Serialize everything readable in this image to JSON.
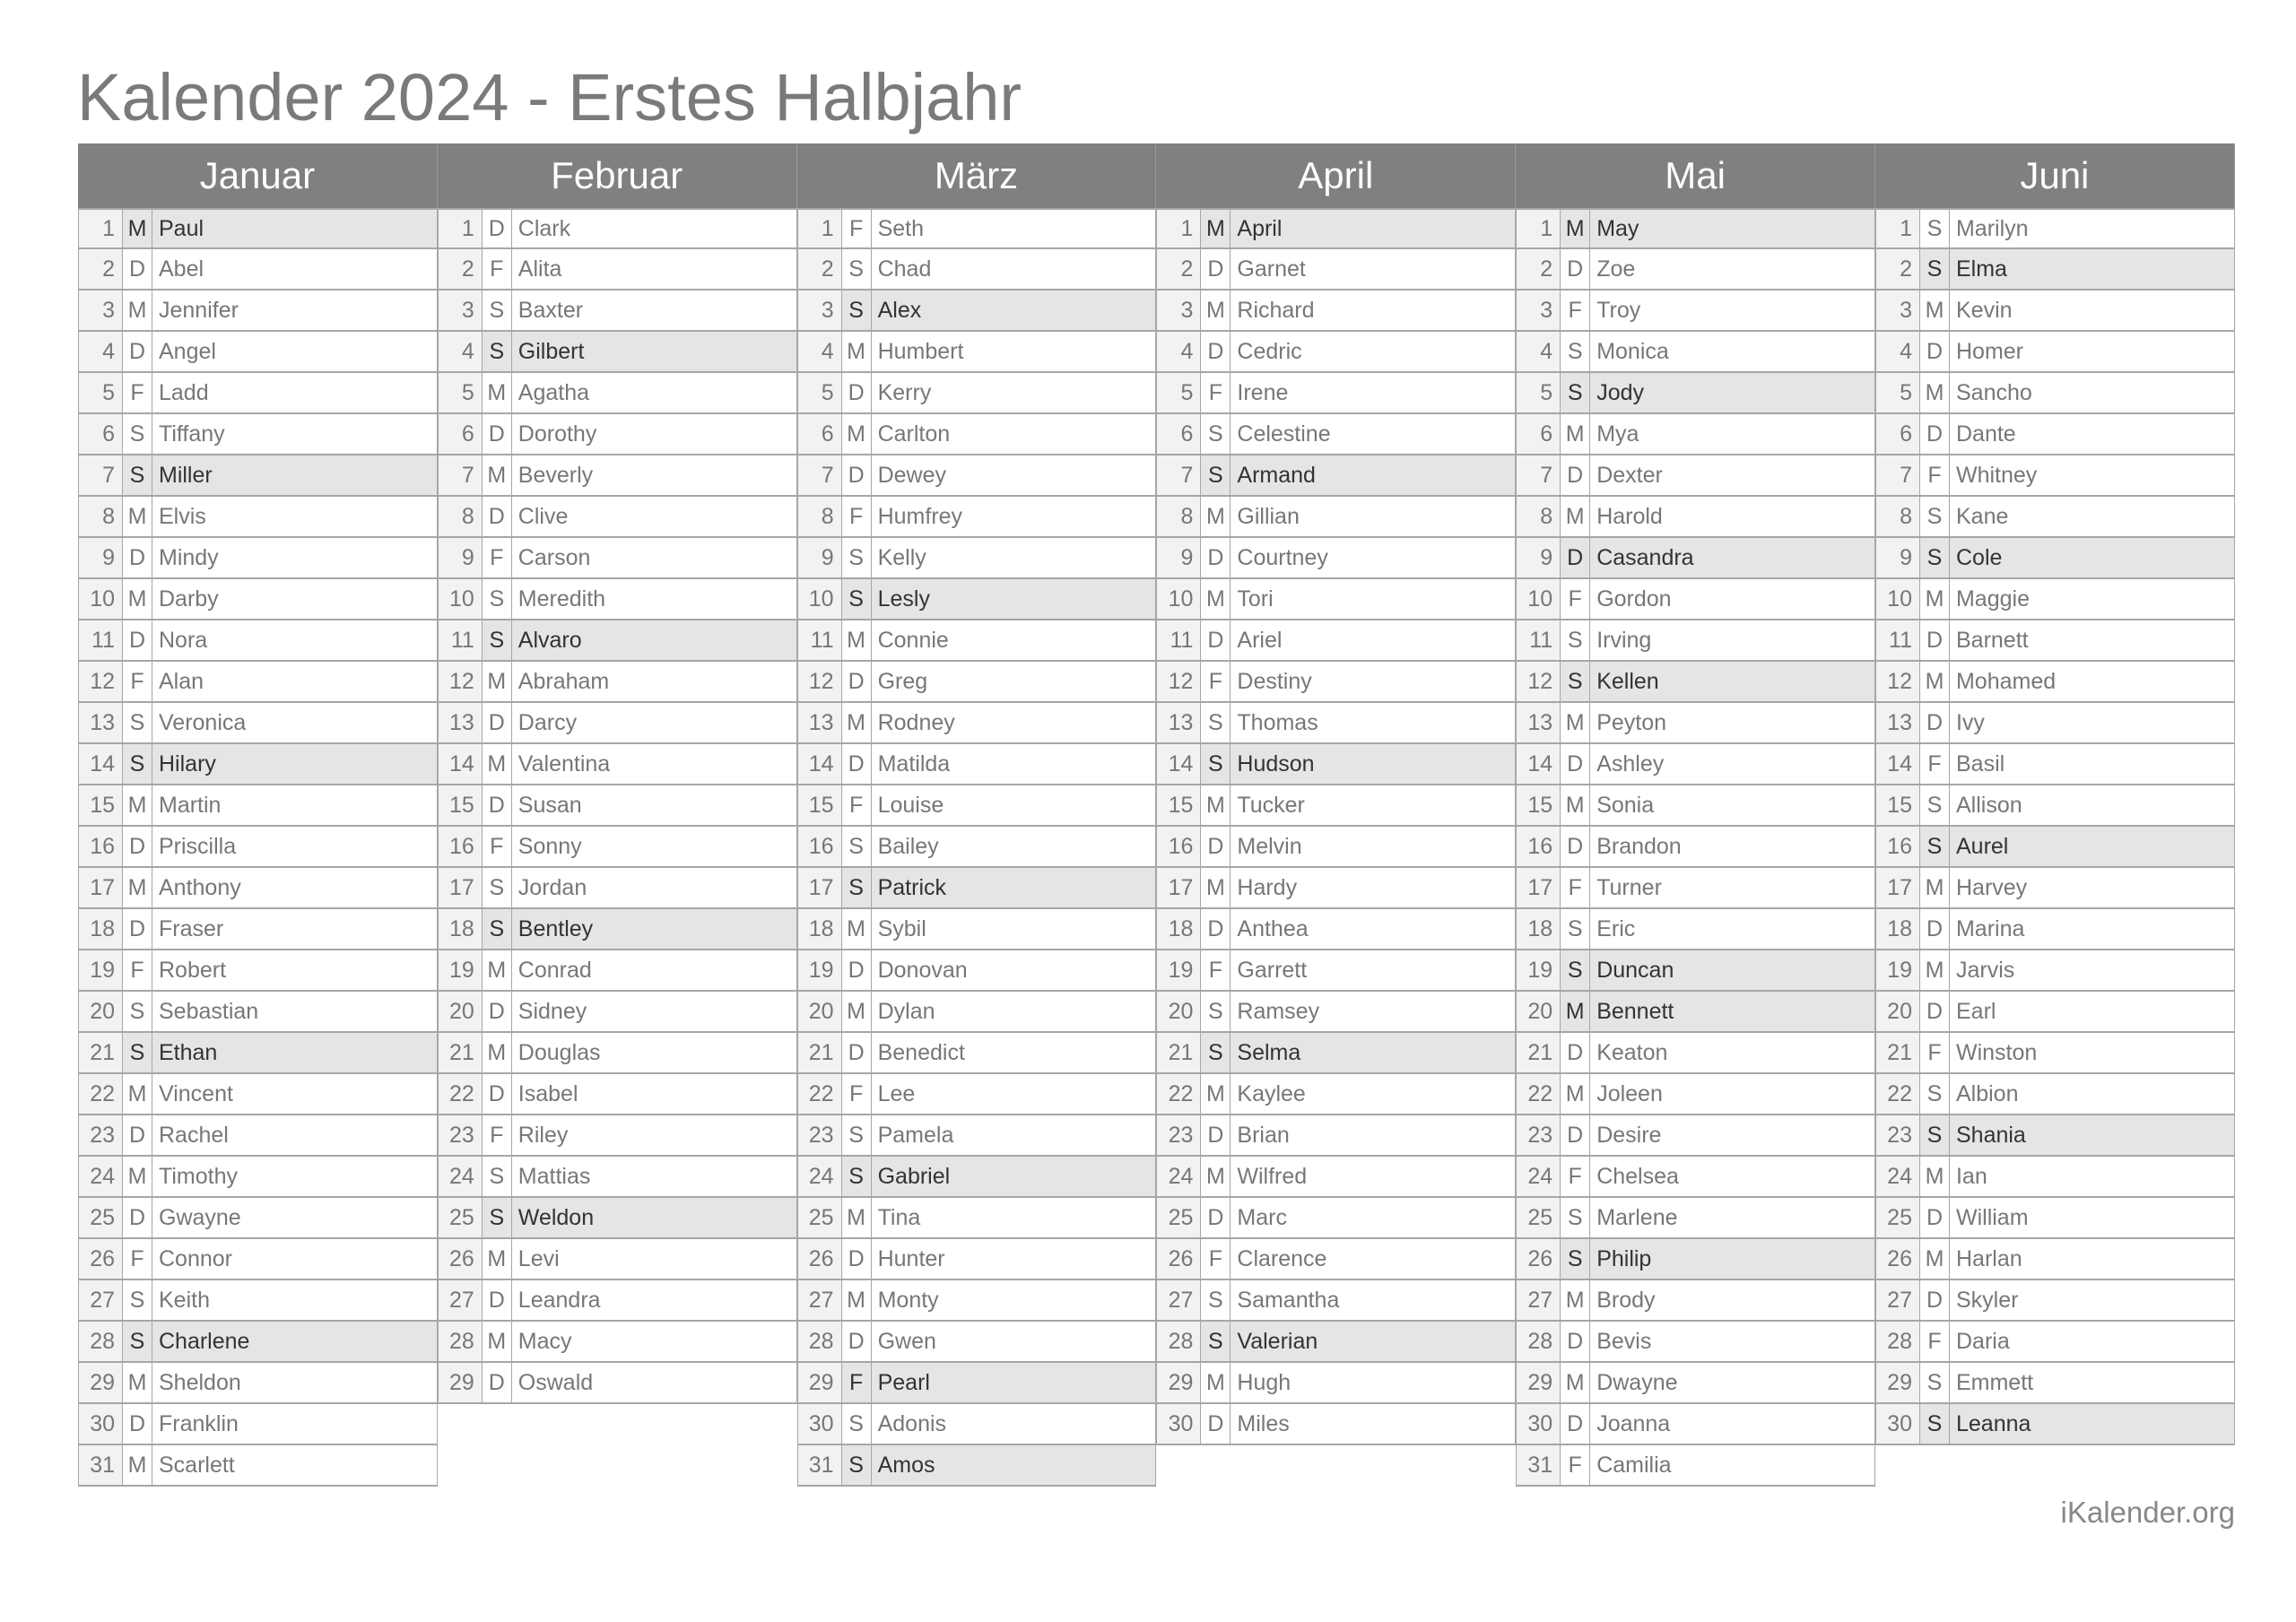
{
  "title": "Kalender 2024 - Erstes Halbjahr",
  "footer": "iKalender.org",
  "colors": {
    "header_bg": "#808080",
    "highlight_bg": "#e5e5e5",
    "day_bg": "#f2f2f2"
  },
  "months": [
    {
      "name": "Januar",
      "weekdays": [
        "M",
        "D",
        "M",
        "D",
        "F",
        "S",
        "S",
        "M",
        "D",
        "M",
        "D",
        "F",
        "S",
        "S",
        "M",
        "D",
        "M",
        "D",
        "F",
        "S",
        "S",
        "M",
        "D",
        "M",
        "D",
        "F",
        "S",
        "S",
        "M",
        "D",
        "M"
      ],
      "names": [
        "Paul",
        "Abel",
        "Jennifer",
        "Angel",
        "Ladd",
        "Tiffany",
        "Miller",
        "Elvis",
        "Mindy",
        "Darby",
        "Nora",
        "Alan",
        "Veronica",
        "Hilary",
        "Martin",
        "Priscilla",
        "Anthony",
        "Fraser",
        "Robert",
        "Sebastian",
        "Ethan",
        "Vincent",
        "Rachel",
        "Timothy",
        "Gwayne",
        "Connor",
        "Keith",
        "Charlene",
        "Sheldon",
        "Franklin",
        "Scarlett"
      ],
      "highlighted": [
        1,
        7,
        14,
        21,
        28
      ]
    },
    {
      "name": "Februar",
      "weekdays": [
        "D",
        "F",
        "S",
        "S",
        "M",
        "D",
        "M",
        "D",
        "F",
        "S",
        "S",
        "M",
        "D",
        "M",
        "D",
        "F",
        "S",
        "S",
        "M",
        "D",
        "M",
        "D",
        "F",
        "S",
        "S",
        "M",
        "D",
        "M",
        "D"
      ],
      "names": [
        "Clark",
        "Alita",
        "Baxter",
        "Gilbert",
        "Agatha",
        "Dorothy",
        "Beverly",
        "Clive",
        "Carson",
        "Meredith",
        "Alvaro",
        "Abraham",
        "Darcy",
        "Valentina",
        "Susan",
        "Sonny",
        "Jordan",
        "Bentley",
        "Conrad",
        "Sidney",
        "Douglas",
        "Isabel",
        "Riley",
        "Mattias",
        "Weldon",
        "Levi",
        "Leandra",
        "Macy",
        "Oswald"
      ],
      "highlighted": [
        4,
        11,
        18,
        25
      ]
    },
    {
      "name": "März",
      "weekdays": [
        "F",
        "S",
        "S",
        "M",
        "D",
        "M",
        "D",
        "F",
        "S",
        "S",
        "M",
        "D",
        "M",
        "D",
        "F",
        "S",
        "S",
        "M",
        "D",
        "M",
        "D",
        "F",
        "S",
        "S",
        "M",
        "D",
        "M",
        "D",
        "F",
        "S",
        "S"
      ],
      "names": [
        "Seth",
        "Chad",
        "Alex",
        "Humbert",
        "Kerry",
        "Carlton",
        "Dewey",
        "Humfrey",
        "Kelly",
        "Lesly",
        "Connie",
        "Greg",
        "Rodney",
        "Matilda",
        "Louise",
        "Bailey",
        "Patrick",
        "Sybil",
        "Donovan",
        "Dylan",
        "Benedict",
        "Lee",
        "Pamela",
        "Gabriel",
        "Tina",
        "Hunter",
        "Monty",
        "Gwen",
        "Pearl",
        "Adonis",
        "Amos"
      ],
      "highlighted": [
        3,
        10,
        17,
        24,
        29,
        31
      ]
    },
    {
      "name": "April",
      "weekdays": [
        "M",
        "D",
        "M",
        "D",
        "F",
        "S",
        "S",
        "M",
        "D",
        "M",
        "D",
        "F",
        "S",
        "S",
        "M",
        "D",
        "M",
        "D",
        "F",
        "S",
        "S",
        "M",
        "D",
        "M",
        "D",
        "F",
        "S",
        "S",
        "M",
        "D"
      ],
      "names": [
        "April",
        "Garnet",
        "Richard",
        "Cedric",
        "Irene",
        "Celestine",
        "Armand",
        "Gillian",
        "Courtney",
        "Tori",
        "Ariel",
        "Destiny",
        "Thomas",
        "Hudson",
        "Tucker",
        "Melvin",
        "Hardy",
        "Anthea",
        "Garrett",
        "Ramsey",
        "Selma",
        "Kaylee",
        "Brian",
        "Wilfred",
        "Marc",
        "Clarence",
        "Samantha",
        "Valerian",
        "Hugh",
        "Miles"
      ],
      "highlighted": [
        1,
        7,
        14,
        21,
        28
      ]
    },
    {
      "name": "Mai",
      "weekdays": [
        "M",
        "D",
        "F",
        "S",
        "S",
        "M",
        "D",
        "M",
        "D",
        "F",
        "S",
        "S",
        "M",
        "D",
        "M",
        "D",
        "F",
        "S",
        "S",
        "M",
        "D",
        "M",
        "D",
        "F",
        "S",
        "S",
        "M",
        "D",
        "M",
        "D",
        "F"
      ],
      "names": [
        "May",
        "Zoe",
        "Troy",
        "Monica",
        "Jody",
        "Mya",
        "Dexter",
        "Harold",
        "Casandra",
        "Gordon",
        "Irving",
        "Kellen",
        "Peyton",
        "Ashley",
        "Sonia",
        "Brandon",
        "Turner",
        "Eric",
        "Duncan",
        "Bennett",
        "Keaton",
        "Joleen",
        "Desire",
        "Chelsea",
        "Marlene",
        "Philip",
        "Brody",
        "Bevis",
        "Dwayne",
        "Joanna",
        "Camilia"
      ],
      "highlighted": [
        1,
        5,
        9,
        12,
        19,
        20,
        26
      ]
    },
    {
      "name": "Juni",
      "weekdays": [
        "S",
        "S",
        "M",
        "D",
        "M",
        "D",
        "F",
        "S",
        "S",
        "M",
        "D",
        "M",
        "D",
        "F",
        "S",
        "S",
        "M",
        "D",
        "M",
        "D",
        "F",
        "S",
        "S",
        "M",
        "D",
        "M",
        "D",
        "F",
        "S",
        "S"
      ],
      "names": [
        "Marilyn",
        "Elma",
        "Kevin",
        "Homer",
        "Sancho",
        "Dante",
        "Whitney",
        "Kane",
        "Cole",
        "Maggie",
        "Barnett",
        "Mohamed",
        "Ivy",
        "Basil",
        "Allison",
        "Aurel",
        "Harvey",
        "Marina",
        "Jarvis",
        "Earl",
        "Winston",
        "Albion",
        "Shania",
        "Ian",
        "William",
        "Harlan",
        "Skyler",
        "Daria",
        "Emmett",
        "Leanna"
      ],
      "highlighted": [
        2,
        9,
        16,
        23,
        30
      ]
    }
  ]
}
